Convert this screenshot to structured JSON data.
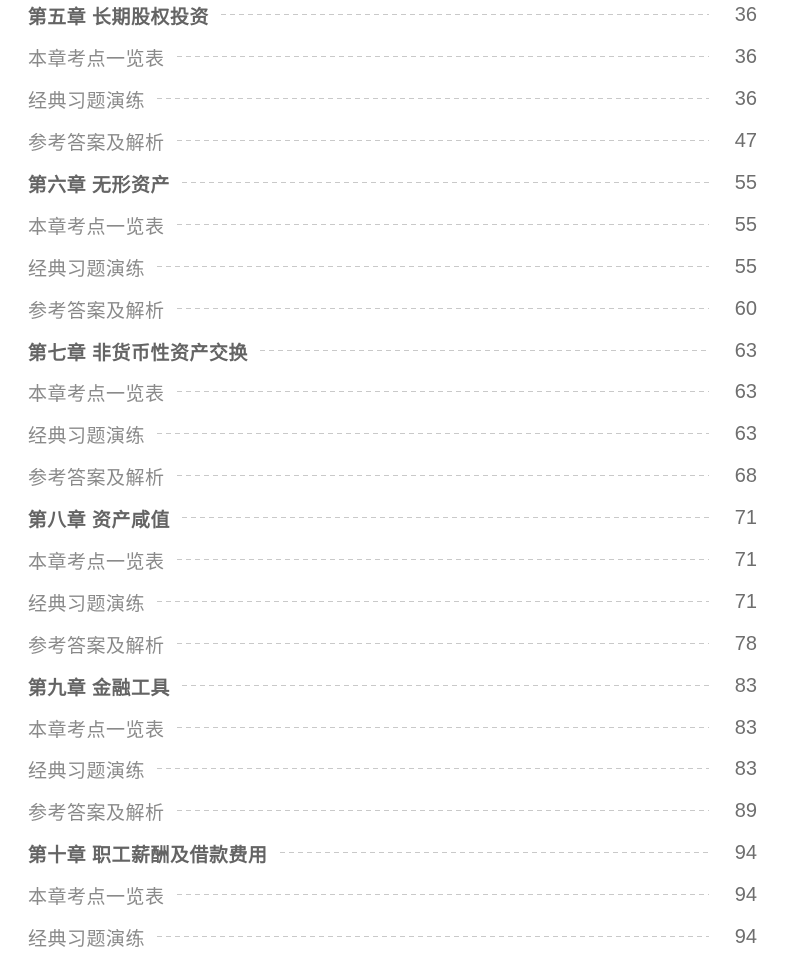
{
  "colors": {
    "background": "#ffffff",
    "chapter_text": "#646464",
    "item_text": "#8a8a8a",
    "page_number": "#6e6e6e",
    "leader_dash": "#c9c9c9"
  },
  "toc": {
    "entries": [
      {
        "type": "chapter",
        "label": "第五章 长期股权投资",
        "page": "36"
      },
      {
        "type": "item",
        "label": "本章考点一览表",
        "page": "36"
      },
      {
        "type": "item",
        "label": "经典习题演练",
        "page": "36"
      },
      {
        "type": "item",
        "label": "参考答案及解析",
        "page": "47"
      },
      {
        "type": "chapter",
        "label": "第六章 无形资产",
        "page": "55"
      },
      {
        "type": "item",
        "label": "本章考点一览表",
        "page": "55"
      },
      {
        "type": "item",
        "label": "经典习题演练",
        "page": "55"
      },
      {
        "type": "item",
        "label": "参考答案及解析",
        "page": "60"
      },
      {
        "type": "chapter",
        "label": "第七章 非货币性资产交换",
        "page": "63"
      },
      {
        "type": "item",
        "label": "本章考点一览表",
        "page": "63"
      },
      {
        "type": "item",
        "label": "经典习题演练",
        "page": "63"
      },
      {
        "type": "item",
        "label": "参考答案及解析",
        "page": "68"
      },
      {
        "type": "chapter",
        "label": "第八章 资产咸值",
        "page": "71"
      },
      {
        "type": "item",
        "label": "本章考点一览表",
        "page": "71"
      },
      {
        "type": "item",
        "label": "经典习题演练",
        "page": "71"
      },
      {
        "type": "item",
        "label": "参考答案及解析",
        "page": "78"
      },
      {
        "type": "chapter",
        "label": "第九章 金融工具",
        "page": "83"
      },
      {
        "type": "item",
        "label": "本章考点一览表",
        "page": "83"
      },
      {
        "type": "item",
        "label": "经典习题演练",
        "page": "83"
      },
      {
        "type": "item",
        "label": "参考答案及解析",
        "page": "89"
      },
      {
        "type": "chapter",
        "label": "第十章 职工薪酬及借款费用",
        "page": "94"
      },
      {
        "type": "item",
        "label": "本章考点一览表",
        "page": "94"
      },
      {
        "type": "item",
        "label": "经典习题演练",
        "page": "94"
      }
    ]
  }
}
